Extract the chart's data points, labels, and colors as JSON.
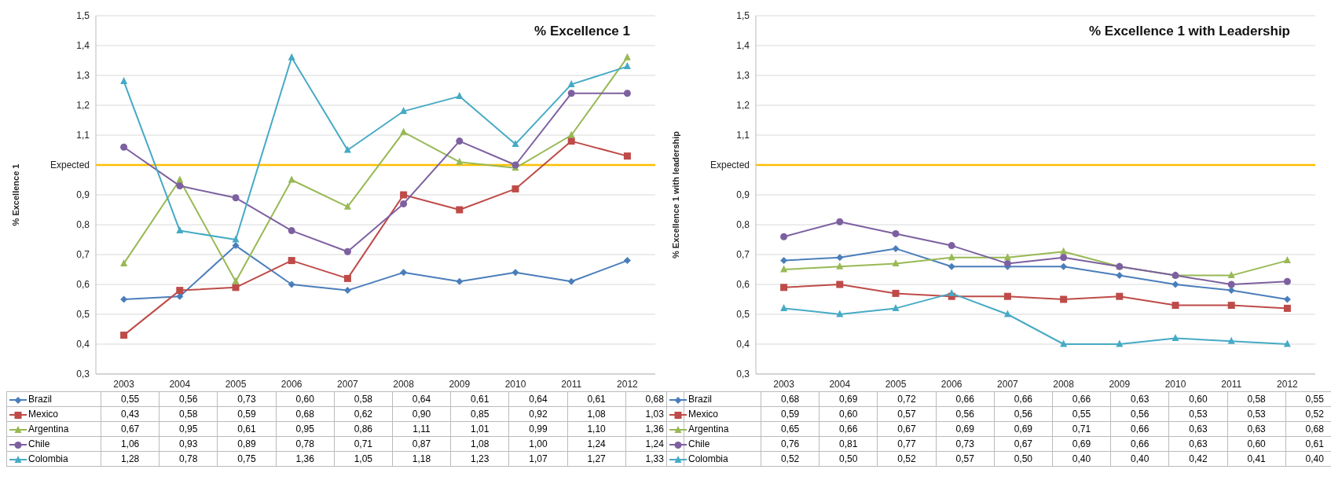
{
  "chart_data": [
    {
      "type": "line",
      "title": "% Excellence 1",
      "ylabel": "% Excellence 1",
      "categories": [
        "2003",
        "2004",
        "2005",
        "2006",
        "2007",
        "2008",
        "2009",
        "2010",
        "2011",
        "2012"
      ],
      "ylim": [
        0.3,
        1.5
      ],
      "yticks": [
        {
          "value": 0.3,
          "label": "0,3"
        },
        {
          "value": 0.4,
          "label": "0,4"
        },
        {
          "value": 0.5,
          "label": "0,5"
        },
        {
          "value": 0.6,
          "label": "0,6"
        },
        {
          "value": 0.7,
          "label": "0,7"
        },
        {
          "value": 0.8,
          "label": "0,8"
        },
        {
          "value": 0.9,
          "label": "0,9"
        },
        {
          "value": 1.0,
          "label": "Expected"
        },
        {
          "value": 1.1,
          "label": "1,1"
        },
        {
          "value": 1.2,
          "label": "1,2"
        },
        {
          "value": 1.3,
          "label": "1,3"
        },
        {
          "value": 1.4,
          "label": "1,4"
        },
        {
          "value": 1.5,
          "label": "1,5"
        }
      ],
      "grid": "y",
      "legend": "bottom",
      "line_style": "solid",
      "ref_lines": [
        {
          "axis": "y",
          "value": 1.0,
          "color": "#ffc000"
        }
      ],
      "series": [
        {
          "name": "Brazil",
          "color": "#4a7ebb",
          "marker": "diamond",
          "values": [
            0.55,
            0.56,
            0.73,
            0.6,
            0.58,
            0.64,
            0.61,
            0.64,
            0.61,
            0.68
          ],
          "value_labels": [
            "0,55",
            "0,56",
            "0,73",
            "0,60",
            "0,58",
            "0,64",
            "0,61",
            "0,64",
            "0,61",
            "0,68"
          ]
        },
        {
          "name": "Mexico",
          "color": "#be4b48",
          "marker": "square",
          "values": [
            0.43,
            0.58,
            0.59,
            0.68,
            0.62,
            0.9,
            0.85,
            0.92,
            1.08,
            1.03
          ],
          "value_labels": [
            "0,43",
            "0,58",
            "0,59",
            "0,68",
            "0,62",
            "0,90",
            "0,85",
            "0,92",
            "1,08",
            "1,03"
          ]
        },
        {
          "name": "Argentina",
          "color": "#98b954",
          "marker": "triangle",
          "values": [
            0.67,
            0.95,
            0.61,
            0.95,
            0.86,
            1.11,
            1.01,
            0.99,
            1.1,
            1.36
          ],
          "value_labels": [
            "0,67",
            "0,95",
            "0,61",
            "0,95",
            "0,86",
            "1,11",
            "1,01",
            "0,99",
            "1,10",
            "1,36"
          ]
        },
        {
          "name": "Chile",
          "color": "#7d60a0",
          "marker": "circle",
          "values": [
            1.06,
            0.93,
            0.89,
            0.78,
            0.71,
            0.87,
            1.08,
            1.0,
            1.24,
            1.24
          ],
          "value_labels": [
            "1,06",
            "0,93",
            "0,89",
            "0,78",
            "0,71",
            "0,87",
            "1,08",
            "1,00",
            "1,24",
            "1,24"
          ]
        },
        {
          "name": "Colombia",
          "color": "#46aac5",
          "marker": "triangle",
          "values": [
            1.28,
            0.78,
            0.75,
            1.36,
            1.05,
            1.18,
            1.23,
            1.07,
            1.27,
            1.33
          ],
          "value_labels": [
            "1,28",
            "0,78",
            "0,75",
            "1,36",
            "1,05",
            "1,18",
            "1,23",
            "1,07",
            "1,27",
            "1,33"
          ]
        }
      ]
    },
    {
      "type": "line",
      "title": "% Excellence 1 with Leadership",
      "ylabel": "% Excellence 1 with leadership",
      "categories": [
        "2003",
        "2004",
        "2005",
        "2006",
        "2007",
        "2008",
        "2009",
        "2010",
        "2011",
        "2012"
      ],
      "ylim": [
        0.3,
        1.5
      ],
      "yticks": [
        {
          "value": 0.3,
          "label": "0,3"
        },
        {
          "value": 0.4,
          "label": "0,4"
        },
        {
          "value": 0.5,
          "label": "0,5"
        },
        {
          "value": 0.6,
          "label": "0,6"
        },
        {
          "value": 0.7,
          "label": "0,7"
        },
        {
          "value": 0.8,
          "label": "0,8"
        },
        {
          "value": 0.9,
          "label": "0,9"
        },
        {
          "value": 1.0,
          "label": "Expected"
        },
        {
          "value": 1.1,
          "label": "1,1"
        },
        {
          "value": 1.2,
          "label": "1,2"
        },
        {
          "value": 1.3,
          "label": "1,3"
        },
        {
          "value": 1.4,
          "label": "1,4"
        },
        {
          "value": 1.5,
          "label": "1,5"
        }
      ],
      "grid": "y",
      "legend": "bottom",
      "line_style": "solid",
      "ref_lines": [
        {
          "axis": "y",
          "value": 1.0,
          "color": "#ffc000"
        }
      ],
      "series": [
        {
          "name": "Brazil",
          "color": "#4a7ebb",
          "marker": "diamond",
          "values": [
            0.68,
            0.69,
            0.72,
            0.66,
            0.66,
            0.66,
            0.63,
            0.6,
            0.58,
            0.55
          ],
          "value_labels": [
            "0,68",
            "0,69",
            "0,72",
            "0,66",
            "0,66",
            "0,66",
            "0,63",
            "0,60",
            "0,58",
            "0,55"
          ]
        },
        {
          "name": "Mexico",
          "color": "#be4b48",
          "marker": "square",
          "values": [
            0.59,
            0.6,
            0.57,
            0.56,
            0.56,
            0.55,
            0.56,
            0.53,
            0.53,
            0.52
          ],
          "value_labels": [
            "0,59",
            "0,60",
            "0,57",
            "0,56",
            "0,56",
            "0,55",
            "0,56",
            "0,53",
            "0,53",
            "0,52"
          ]
        },
        {
          "name": "Argentina",
          "color": "#98b954",
          "marker": "triangle",
          "values": [
            0.65,
            0.66,
            0.67,
            0.69,
            0.69,
            0.71,
            0.66,
            0.63,
            0.63,
            0.68
          ],
          "value_labels": [
            "0,65",
            "0,66",
            "0,67",
            "0,69",
            "0,69",
            "0,71",
            "0,66",
            "0,63",
            "0,63",
            "0,68"
          ]
        },
        {
          "name": "Chile",
          "color": "#7d60a0",
          "marker": "circle",
          "values": [
            0.76,
            0.81,
            0.77,
            0.73,
            0.67,
            0.69,
            0.66,
            0.63,
            0.6,
            0.61
          ],
          "value_labels": [
            "0,76",
            "0,81",
            "0,77",
            "0,73",
            "0,67",
            "0,69",
            "0,66",
            "0,63",
            "0,60",
            "0,61"
          ]
        },
        {
          "name": "Colombia",
          "color": "#46aac5",
          "marker": "triangle",
          "values": [
            0.52,
            0.5,
            0.52,
            0.57,
            0.5,
            0.4,
            0.4,
            0.42,
            0.41,
            0.4
          ],
          "value_labels": [
            "0,52",
            "0,50",
            "0,52",
            "0,57",
            "0,50",
            "0,40",
            "0,40",
            "0,42",
            "0,41",
            "0,40"
          ]
        }
      ]
    }
  ]
}
